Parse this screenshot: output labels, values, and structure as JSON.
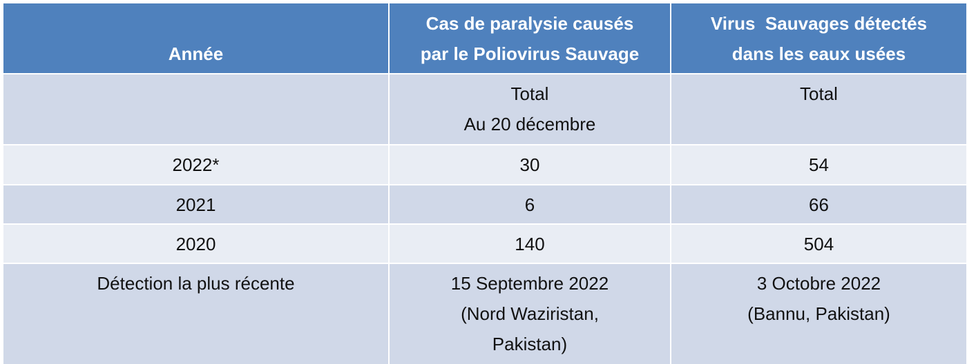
{
  "table": {
    "header": [
      "Année",
      "Cas de paralysie causés\npar le Poliovirus Sauvage",
      "Virus  Sauvages détectés\ndans les eaux usées"
    ],
    "rows": [
      [
        "",
        "Total\nAu 20 décembre",
        "Total"
      ],
      [
        "2022*",
        30,
        54
      ],
      [
        "2021",
        6,
        66
      ],
      [
        "2020",
        140,
        504
      ],
      [
        "Détection la plus récente",
        "15 Septembre 2022\n(Nord Waziristan,\nPakistan)",
        "3 Octobre 2022\n(Bannu, Pakistan)"
      ]
    ]
  }
}
